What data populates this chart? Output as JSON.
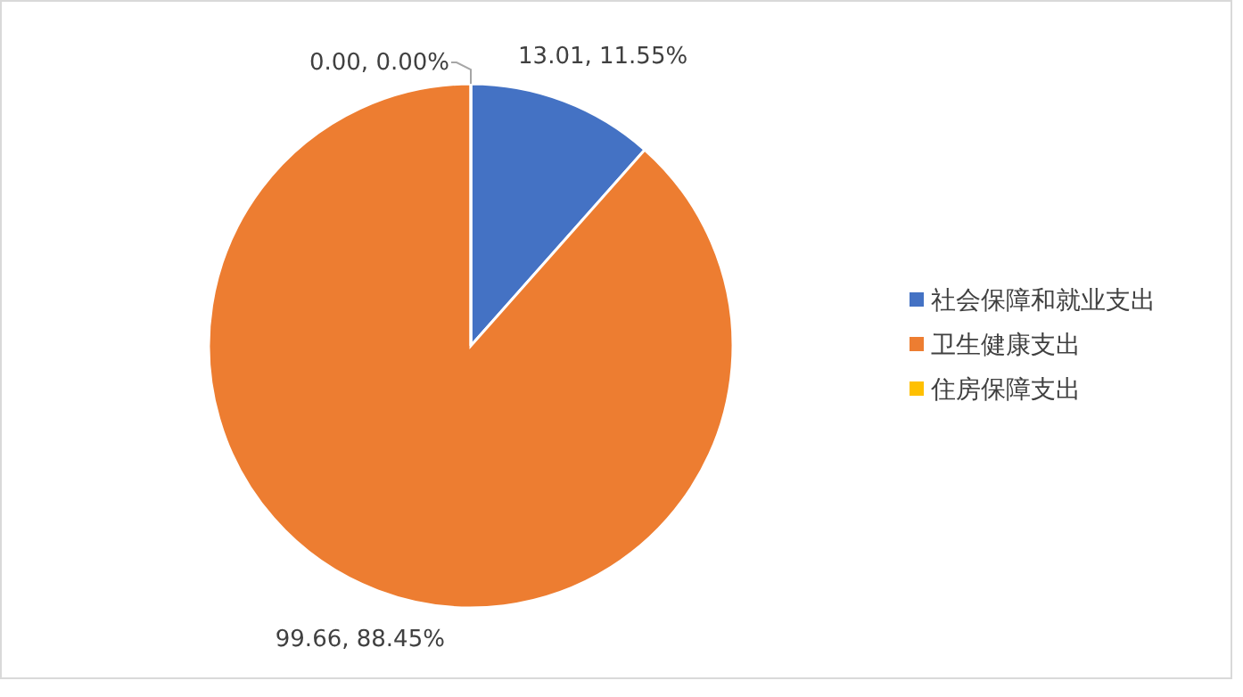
{
  "chart_data": {
    "type": "pie",
    "categories": [
      "社会保障和就业支出",
      "卫生健康支出",
      "住房保障支出"
    ],
    "values": [
      13.01,
      99.66,
      0.0
    ],
    "colors": [
      "#4472c4",
      "#ed7d31",
      "#ffc000"
    ],
    "value_labels": [
      "13.01, 11.55%",
      "99.66, 88.45%",
      "0.00, 0.00%"
    ],
    "legend": "right"
  }
}
